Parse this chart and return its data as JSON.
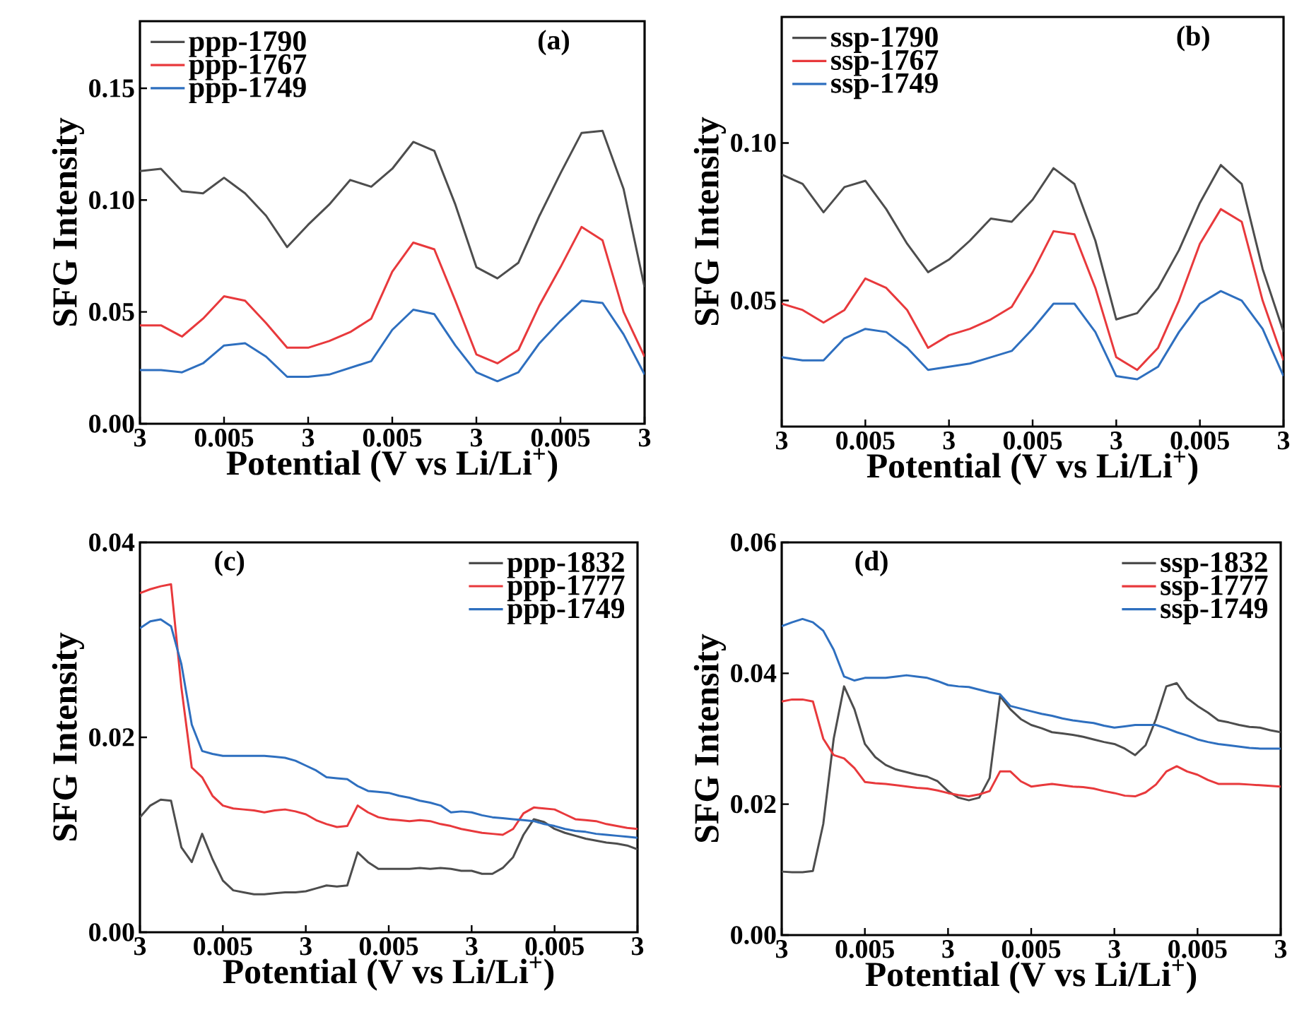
{
  "chart_data": [
    {
      "type": "line",
      "title": "(a)",
      "xlabel": "Potential (V vs Li/Li$^{+}$)",
      "ylabel": "SFG Intensity",
      "legend": "top left",
      "categories": [
        "3",
        null,
        null,
        null,
        "0.005",
        null,
        null,
        null,
        "3",
        null,
        null,
        null,
        "0.005",
        null,
        null,
        null,
        "3",
        null,
        null,
        null,
        "0.005",
        null,
        null,
        null,
        "3"
      ],
      "ylim": [
        0,
        0.18
      ],
      "yticks": [
        {
          "value": 0,
          "label": "0.00"
        },
        {
          "value": 0.05,
          "label": "0.05"
        },
        {
          "value": 0.1,
          "label": "0.10"
        },
        {
          "value": 0.15,
          "label": "0.15"
        }
      ],
      "series": [
        {
          "name": "ppp-1790",
          "color": "#4d4d4d",
          "values": [
            0.113,
            0.114,
            0.104,
            0.103,
            0.11,
            0.103,
            0.093,
            0.079,
            0.089,
            0.098,
            0.109,
            0.106,
            0.114,
            0.126,
            0.122,
            0.098,
            0.07,
            0.065,
            0.072,
            0.093,
            0.112,
            0.13,
            0.131,
            0.105,
            0.061
          ]
        },
        {
          "name": "ppp-1767",
          "color": "#e8393c",
          "values": [
            0.044,
            0.044,
            0.039,
            0.047,
            0.057,
            0.055,
            0.045,
            0.034,
            0.034,
            0.037,
            0.041,
            0.047,
            0.068,
            0.081,
            0.078,
            0.055,
            0.031,
            0.027,
            0.033,
            0.053,
            0.07,
            0.088,
            0.082,
            0.05,
            0.03
          ]
        },
        {
          "name": "ppp-1749",
          "color": "#2e6fbf",
          "values": [
            0.024,
            0.024,
            0.023,
            0.027,
            0.035,
            0.036,
            0.03,
            0.021,
            0.021,
            0.022,
            0.025,
            0.028,
            0.042,
            0.051,
            0.049,
            0.035,
            0.023,
            0.019,
            0.023,
            0.036,
            0.046,
            0.055,
            0.054,
            0.04,
            0.022
          ]
        }
      ]
    },
    {
      "type": "line",
      "title": "(b)",
      "xlabel": "Potential (V vs Li/Li$^{+}$)",
      "ylabel": "SFG Intensity",
      "legend": "top left",
      "categories": [
        "3",
        null,
        null,
        null,
        "0.005",
        null,
        null,
        null,
        "3",
        null,
        null,
        null,
        "0.005",
        null,
        null,
        null,
        "3",
        null,
        null,
        null,
        "0.005",
        null,
        null,
        null,
        "3"
      ],
      "ylim": [
        0.01,
        0.14
      ],
      "yticks": [
        {
          "value": 0.05,
          "label": "0.05"
        },
        {
          "value": 0.1,
          "label": "0.10"
        }
      ],
      "series": [
        {
          "name": "ssp-1790",
          "color": "#4d4d4d",
          "values": [
            0.09,
            0.087,
            0.078,
            0.086,
            0.088,
            0.079,
            0.068,
            0.059,
            0.063,
            0.069,
            0.076,
            0.075,
            0.082,
            0.092,
            0.087,
            0.069,
            0.044,
            0.046,
            0.054,
            0.066,
            0.081,
            0.093,
            0.087,
            0.06,
            0.04
          ]
        },
        {
          "name": "ssp-1767",
          "color": "#e8393c",
          "values": [
            0.049,
            0.047,
            0.043,
            0.047,
            0.057,
            0.054,
            0.047,
            0.035,
            0.039,
            0.041,
            0.044,
            0.048,
            0.059,
            0.072,
            0.071,
            0.054,
            0.032,
            0.028,
            0.035,
            0.05,
            0.068,
            0.079,
            0.075,
            0.05,
            0.031
          ]
        },
        {
          "name": "ssp-1749",
          "color": "#2e6fbf",
          "values": [
            0.032,
            0.031,
            0.031,
            0.038,
            0.041,
            0.04,
            0.035,
            0.028,
            0.029,
            0.03,
            0.032,
            0.034,
            0.041,
            0.049,
            0.049,
            0.04,
            0.026,
            0.025,
            0.029,
            0.04,
            0.049,
            0.053,
            0.05,
            0.041,
            0.026
          ]
        }
      ]
    },
    {
      "type": "line",
      "title": "(c)",
      "xlabel": "Potential (V vs Li/Li$^{+}$)",
      "ylabel": "SFG Intensity",
      "legend": "top right",
      "categories": [
        "3",
        null,
        null,
        null,
        null,
        null,
        null,
        null,
        "0.005",
        null,
        null,
        null,
        null,
        null,
        null,
        null,
        "3",
        null,
        null,
        null,
        null,
        null,
        null,
        null,
        "0.005",
        null,
        null,
        null,
        null,
        null,
        null,
        null,
        "3",
        null,
        null,
        null,
        null,
        null,
        null,
        null,
        "0.005",
        null,
        null,
        null,
        null,
        null,
        null,
        null,
        "3"
      ],
      "ylim": [
        0,
        0.04
      ],
      "yticks": [
        {
          "value": 0,
          "label": "0.00"
        },
        {
          "value": 0.02,
          "label": "0.02"
        },
        {
          "value": 0.04,
          "label": "0.04"
        }
      ],
      "series": [
        {
          "name": "ppp-1832",
          "color": "#4d4d4d",
          "values": [
            0.0118,
            0.013,
            0.0136,
            0.0135,
            0.0087,
            0.0072,
            0.0101,
            0.0075,
            0.0053,
            0.0043,
            0.0041,
            0.0039,
            0.0039,
            0.004,
            0.0041,
            0.0041,
            0.0042,
            0.0045,
            0.0048,
            0.0047,
            0.0048,
            0.0082,
            0.0072,
            0.0065,
            0.0065,
            0.0065,
            0.0065,
            0.0066,
            0.0065,
            0.0066,
            0.0065,
            0.0063,
            0.0063,
            0.006,
            0.006,
            0.0066,
            0.0077,
            0.01,
            0.0116,
            0.0113,
            0.0106,
            0.0102,
            0.0099,
            0.0096,
            0.0094,
            0.0092,
            0.0091,
            0.0089,
            0.0085
          ]
        },
        {
          "name": "ppp-1777",
          "color": "#e8393c",
          "values": [
            0.0348,
            0.0352,
            0.0355,
            0.0357,
            0.0251,
            0.0169,
            0.0159,
            0.014,
            0.013,
            0.0127,
            0.0126,
            0.0125,
            0.0123,
            0.0125,
            0.0126,
            0.0124,
            0.0121,
            0.0115,
            0.0111,
            0.0108,
            0.0109,
            0.013,
            0.0123,
            0.0118,
            0.0116,
            0.0115,
            0.0114,
            0.0115,
            0.0114,
            0.0111,
            0.0109,
            0.0106,
            0.0104,
            0.0102,
            0.0101,
            0.01,
            0.0106,
            0.0122,
            0.0128,
            0.0127,
            0.0126,
            0.0121,
            0.0116,
            0.0115,
            0.0114,
            0.0111,
            0.0109,
            0.0107,
            0.0106
          ]
        },
        {
          "name": "ppp-1749",
          "color": "#2e6fbf",
          "values": [
            0.0312,
            0.0319,
            0.0321,
            0.0314,
            0.0275,
            0.0213,
            0.0186,
            0.0183,
            0.0181,
            0.0181,
            0.0181,
            0.0181,
            0.0181,
            0.018,
            0.0179,
            0.0176,
            0.0171,
            0.0166,
            0.0159,
            0.0158,
            0.0157,
            0.015,
            0.0145,
            0.0144,
            0.0143,
            0.014,
            0.0138,
            0.0135,
            0.0133,
            0.013,
            0.0123,
            0.0124,
            0.0123,
            0.012,
            0.0118,
            0.0117,
            0.0116,
            0.0115,
            0.0114,
            0.0111,
            0.0109,
            0.0106,
            0.0104,
            0.0103,
            0.0101,
            0.01,
            0.0099,
            0.0098,
            0.0097
          ]
        }
      ]
    },
    {
      "type": "line",
      "title": "(d)",
      "xlabel": "Potential (V vs Li/Li$^{+}$)",
      "ylabel": "SFG Intensity",
      "legend": "top right",
      "categories": [
        "3",
        null,
        null,
        null,
        null,
        null,
        null,
        null,
        "0.005",
        null,
        null,
        null,
        null,
        null,
        null,
        null,
        "3",
        null,
        null,
        null,
        null,
        null,
        null,
        null,
        "0.005",
        null,
        null,
        null,
        null,
        null,
        null,
        null,
        "3",
        null,
        null,
        null,
        null,
        null,
        null,
        null,
        "0.005",
        null,
        null,
        null,
        null,
        null,
        null,
        null,
        "3"
      ],
      "ylim": [
        0,
        0.06
      ],
      "yticks": [
        {
          "value": 0,
          "label": "0.00"
        },
        {
          "value": 0.02,
          "label": "0.02"
        },
        {
          "value": 0.04,
          "label": "0.04"
        },
        {
          "value": 0.06,
          "label": "0.06"
        }
      ],
      "series": [
        {
          "name": "ssp-1832",
          "color": "#4d4d4d",
          "values": [
            0.0097,
            0.0096,
            0.0096,
            0.0098,
            0.017,
            0.03,
            0.038,
            0.0345,
            0.0292,
            0.0272,
            0.026,
            0.0253,
            0.0249,
            0.0245,
            0.0242,
            0.0235,
            0.022,
            0.021,
            0.0206,
            0.021,
            0.024,
            0.0365,
            0.0345,
            0.033,
            0.0321,
            0.0316,
            0.031,
            0.0308,
            0.0306,
            0.0303,
            0.0299,
            0.0295,
            0.0292,
            0.0285,
            0.0275,
            0.029,
            0.033,
            0.038,
            0.0385,
            0.0362,
            0.035,
            0.034,
            0.0328,
            0.0325,
            0.0321,
            0.0318,
            0.0317,
            0.0313,
            0.031
          ]
        },
        {
          "name": "ssp-1777",
          "color": "#e8393c",
          "values": [
            0.0357,
            0.036,
            0.036,
            0.0357,
            0.03,
            0.0275,
            0.027,
            0.0255,
            0.0234,
            0.0232,
            0.0231,
            0.0229,
            0.0227,
            0.0225,
            0.0224,
            0.0221,
            0.0217,
            0.0214,
            0.0212,
            0.0215,
            0.022,
            0.025,
            0.025,
            0.0235,
            0.0227,
            0.0229,
            0.0231,
            0.0229,
            0.0227,
            0.0226,
            0.0224,
            0.022,
            0.0217,
            0.0213,
            0.0212,
            0.0218,
            0.023,
            0.025,
            0.0258,
            0.025,
            0.0245,
            0.0237,
            0.0231,
            0.0231,
            0.0231,
            0.023,
            0.0229,
            0.0228,
            0.0227
          ]
        },
        {
          "name": "ssp-1749",
          "color": "#2e6fbf",
          "values": [
            0.0472,
            0.0478,
            0.0483,
            0.0478,
            0.0465,
            0.0436,
            0.0395,
            0.0389,
            0.0393,
            0.0393,
            0.0393,
            0.0395,
            0.0397,
            0.0395,
            0.0393,
            0.0388,
            0.0382,
            0.038,
            0.0379,
            0.0375,
            0.0371,
            0.0368,
            0.035,
            0.0346,
            0.0342,
            0.0338,
            0.0335,
            0.0331,
            0.0328,
            0.0326,
            0.0324,
            0.032,
            0.0317,
            0.0319,
            0.0321,
            0.0321,
            0.0321,
            0.0316,
            0.031,
            0.0305,
            0.0299,
            0.0295,
            0.0292,
            0.029,
            0.0288,
            0.0286,
            0.0285,
            0.0285,
            0.0285
          ]
        }
      ]
    }
  ]
}
